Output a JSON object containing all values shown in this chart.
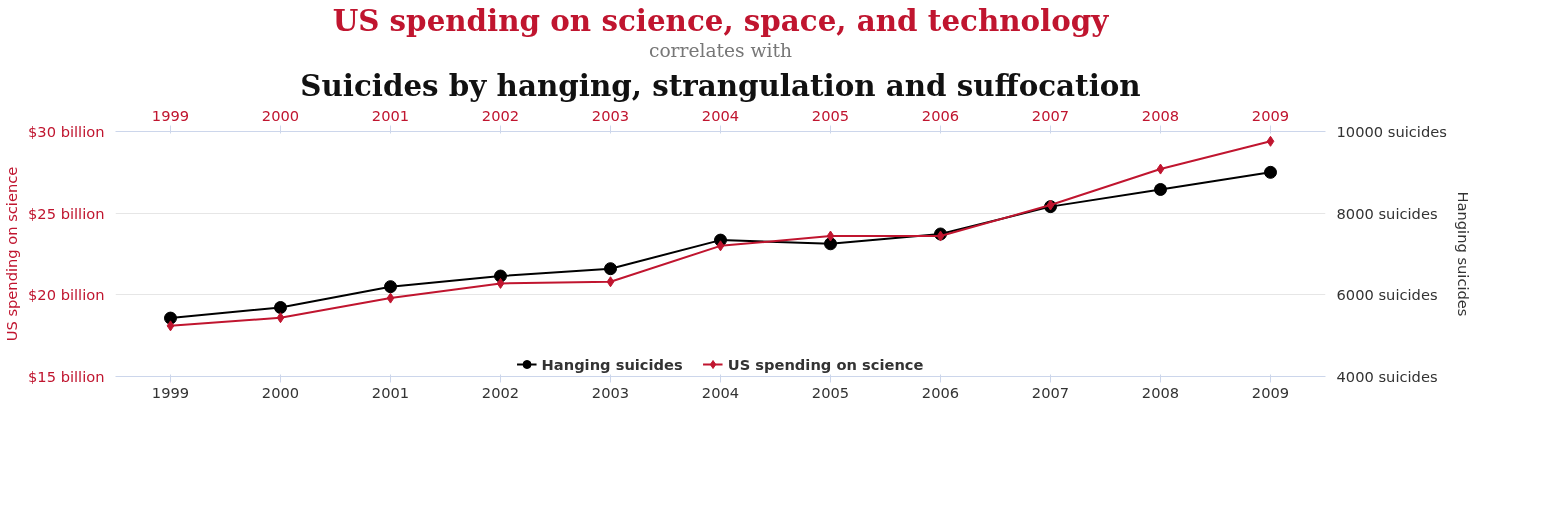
{
  "chart_data": {
    "type": "line",
    "title": "US spending on science, space, and technology",
    "subtitle": "correlates with",
    "annotations": [
      "Suicides by hanging, strangulation and suffocation"
    ],
    "x": [
      1999,
      2000,
      2001,
      2002,
      2003,
      2004,
      2005,
      2006,
      2007,
      2008,
      2009
    ],
    "xlim": [
      1998.5,
      2009.5
    ],
    "xticks": [
      1999,
      2000,
      2001,
      2002,
      2003,
      2004,
      2005,
      2006,
      2007,
      2008,
      2009
    ],
    "x2lim": [
      1998.5,
      2009.5
    ],
    "x2ticks": [
      1999,
      2000,
      2001,
      2002,
      2003,
      2004,
      2005,
      2006,
      2007,
      2008,
      2009
    ],
    "ylim": [
      15,
      30
    ],
    "yticks": [
      {
        "value": 15,
        "label": "$15 billion"
      },
      {
        "value": 20,
        "label": "$20 billion"
      },
      {
        "value": 25,
        "label": "$25 billion"
      },
      {
        "value": 30,
        "label": "$30 billion"
      }
    ],
    "y2lim": [
      4000,
      10000
    ],
    "y2ticks": [
      {
        "value": 4000,
        "label": "4000 suicides"
      },
      {
        "value": 6000,
        "label": "6000 suicides"
      },
      {
        "value": 8000,
        "label": "8000 suicides"
      },
      {
        "value": 10000,
        "label": "10000 suicides"
      }
    ],
    "ylabel": "US spending on science",
    "y2label": "Hanging suicides",
    "series": [
      {
        "name": "Hanging suicides",
        "color": "#000000",
        "axis": "y2",
        "marker": "circle",
        "values": [
          5430,
          5690,
          6200,
          6460,
          6640,
          7340,
          7250,
          7490,
          8160,
          8580,
          9000
        ]
      },
      {
        "name": "US spending on science",
        "color": "#c0152f",
        "marker": "diamond",
        "values": [
          18.1,
          18.6,
          19.8,
          20.7,
          20.8,
          23.0,
          23.6,
          23.6,
          25.5,
          27.7,
          29.4
        ]
      }
    ],
    "grid": "y",
    "legend": "bottom",
    "line_style": "solid"
  }
}
